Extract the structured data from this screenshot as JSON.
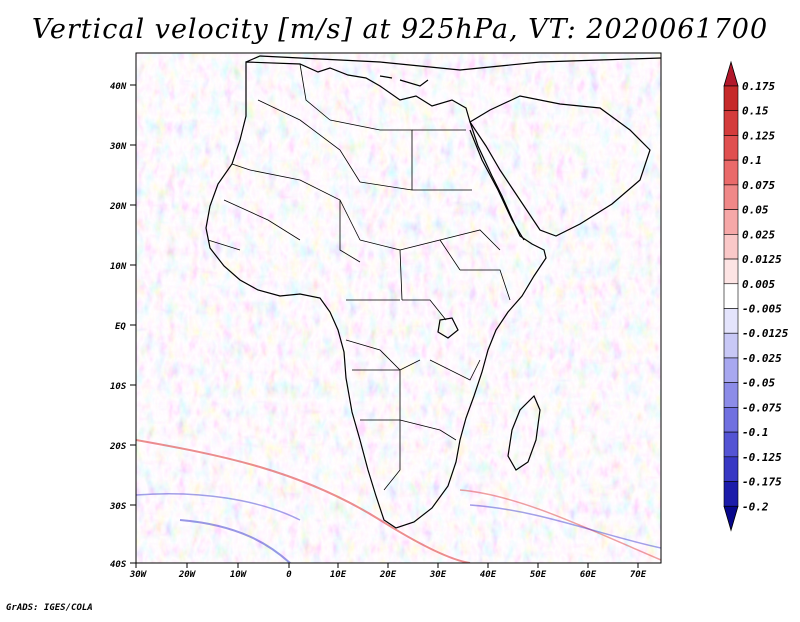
{
  "title": "Vertical velocity [m/s] at 925hPa, VT: 2020061700",
  "credit": "GrADS: IGES/COLA",
  "map": {
    "variable": "Vertical velocity",
    "units": "m/s",
    "level": "925hPa",
    "valid_time": "2020061700",
    "lat_labels": [
      "40N",
      "30N",
      "20N",
      "10N",
      "EQ",
      "10S",
      "20S",
      "30S",
      "40S"
    ],
    "lon_labels": [
      "30W",
      "20W",
      "10W",
      "0",
      "10E",
      "20E",
      "30E",
      "40E",
      "50E",
      "60E",
      "70E"
    ]
  },
  "colorbar": {
    "labels": [
      "0.175",
      "0.15",
      "0.125",
      "0.1",
      "0.075",
      "0.05",
      "0.025",
      "0.0125",
      "0.005",
      "-0.005",
      "-0.0125",
      "-0.025",
      "-0.05",
      "-0.075",
      "-0.1",
      "-0.125",
      "-0.175",
      "-0.2"
    ],
    "colors": [
      "#b2182b",
      "#c62a2a",
      "#d43c3c",
      "#e05050",
      "#ea6a6a",
      "#f08888",
      "#f6a8a8",
      "#fac8c8",
      "#fde4e4",
      "#ffffff",
      "#e4e4fc",
      "#c8c8f6",
      "#a8a8f0",
      "#8c8ce8",
      "#7070e0",
      "#5454d4",
      "#3838c4",
      "#1c1caa",
      "#08088c"
    ]
  }
}
